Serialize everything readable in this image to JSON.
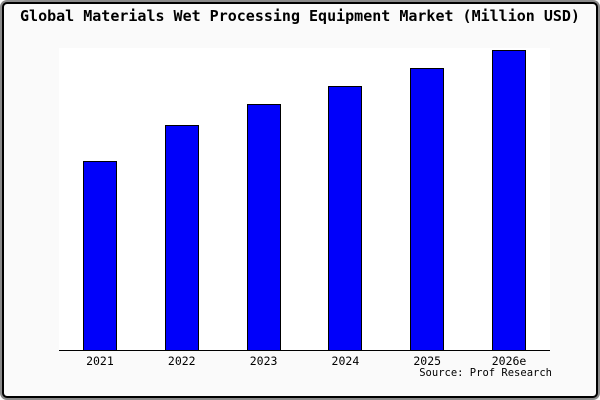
{
  "frame": {
    "background": "#fafafa",
    "outer_ring_color": "#8a8a8a",
    "border_color": "#000000"
  },
  "chart_data": {
    "type": "bar",
    "title": "Global Materials Wet Processing Equipment Market (Million USD)",
    "categories": [
      "2021",
      "2022",
      "2023",
      "2024",
      "2025",
      "2026e"
    ],
    "values": [
      63,
      75,
      82,
      88,
      94,
      100
    ],
    "values_note": "no y-axis ticks or data labels shown; values are estimated relative bar heights (% of tallest 2026e bar)",
    "xlabel": "",
    "ylabel": "",
    "ylim": [
      0,
      100
    ],
    "grid": false,
    "legend": "none",
    "axis_style": "bottom baseline only, no ticks",
    "plot_background": "#ffffff",
    "bar_color": "#0000fa",
    "bar_border_color": "#000000"
  },
  "source": "Source: Prof Research"
}
